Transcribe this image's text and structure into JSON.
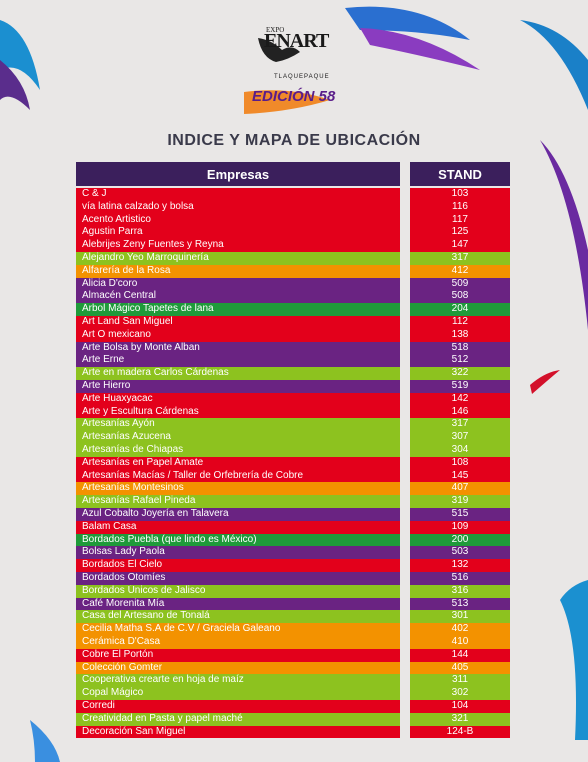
{
  "header": {
    "expo": "EXPO",
    "brand": "ENART",
    "city": "TLAQUEPAQUE",
    "edition": "EDICIÓN 58",
    "title": "INDICE Y MAPA DE UBICACIÓN"
  },
  "table": {
    "columns": [
      "Empresas",
      "STAND"
    ],
    "rows": [
      [
        "C & J",
        "103",
        "#e3001b"
      ],
      [
        "vía latina calzado y bolsa",
        "116",
        "#e3001b"
      ],
      [
        "Acento Artistico",
        "117",
        "#e3001b"
      ],
      [
        "Agustin Parra",
        "125",
        "#e3001b"
      ],
      [
        "Alebrijes Zeny Fuentes y Reyna",
        "147",
        "#e3001b"
      ],
      [
        "Alejandro Yeo Marroquinería",
        "317",
        "#8dc21f"
      ],
      [
        "Alfarería de la Rosa",
        "412",
        "#f39200"
      ],
      [
        "Alicia D'coro",
        "509",
        "#6a2382"
      ],
      [
        "Almacén Central",
        "508",
        "#6a2382"
      ],
      [
        "Árbol Mágico Tapetes de lana",
        "204",
        "#1f9a3a"
      ],
      [
        "Art Land San Miguel",
        "112",
        "#e3001b"
      ],
      [
        "Art O mexicano",
        "138",
        "#e3001b"
      ],
      [
        "Arte Bolsa by Monte Alban",
        "518",
        "#6a2382"
      ],
      [
        "Arte Erne",
        "512",
        "#6a2382"
      ],
      [
        "Arte en madera Carlos Cárdenas",
        "322",
        "#8dc21f"
      ],
      [
        "Arte Hierro",
        "519",
        "#6a2382"
      ],
      [
        "Arte Huaxyacac",
        "142",
        "#e3001b"
      ],
      [
        "Arte y Escultura Cárdenas",
        "146",
        "#e3001b"
      ],
      [
        "Artesanías Ayón",
        "317",
        "#8dc21f"
      ],
      [
        "Artesanías Azucena",
        "307",
        "#8dc21f"
      ],
      [
        "Artesanías de Chiapas",
        "304",
        "#8dc21f"
      ],
      [
        "Artesanías en Papel Amate",
        "108",
        "#e3001b"
      ],
      [
        "Artesanías Macías / Taller de Orfebrería de Cobre",
        "145",
        "#e3001b"
      ],
      [
        "Artesanías Montesinos",
        "407",
        "#f39200"
      ],
      [
        "Artesanías Rafael Pineda",
        "319",
        "#8dc21f"
      ],
      [
        "Azul Cobalto Joyería en Talavera",
        "515",
        "#6a2382"
      ],
      [
        "Balam Casa",
        "109",
        "#e3001b"
      ],
      [
        "Bordados Puebla (que lindo es México)",
        "200",
        "#1f9a3a"
      ],
      [
        "Bolsas Lady Paola",
        "503",
        "#6a2382"
      ],
      [
        "Bordados El Cielo",
        "132",
        "#e3001b"
      ],
      [
        "Bordados Otomíes",
        "516",
        "#6a2382"
      ],
      [
        "Bordados Únicos de Jalisco",
        "316",
        "#8dc21f"
      ],
      [
        "Café Morenita Mía",
        "513",
        "#6a2382"
      ],
      [
        "Casa del Artesano de Tonalá",
        "301",
        "#8dc21f"
      ],
      [
        "Cecilia Matha S.A de C.V / Graciela Galeano",
        "402",
        "#f39200"
      ],
      [
        "Cerámica D'Casa",
        "410",
        "#f39200"
      ],
      [
        "Cobre El Portón",
        "144",
        "#e3001b"
      ],
      [
        "Colección Gomter",
        "405",
        "#f39200"
      ],
      [
        "Cooperativa crearte en hoja de maíz",
        "311",
        "#8dc21f"
      ],
      [
        "Copal Mágico",
        "302",
        "#8dc21f"
      ],
      [
        "Corredi",
        "104",
        "#e3001b"
      ],
      [
        "Creatividad en Pasta y papel maché",
        "321",
        "#8dc21f"
      ],
      [
        "Decoración San Miguel",
        "124-B",
        "#e3001b"
      ]
    ]
  }
}
